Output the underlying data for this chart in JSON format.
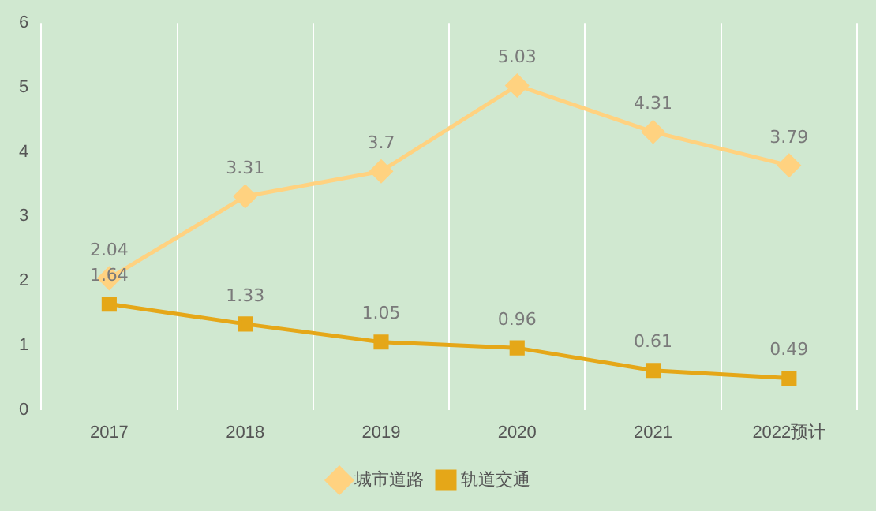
{
  "chart_data": {
    "type": "line",
    "categories": [
      "2017",
      "2018",
      "2019",
      "2020",
      "2021",
      "2022预计"
    ],
    "series": [
      {
        "name": "城市道路",
        "color": "#ffd280",
        "values": [
          2.04,
          3.31,
          3.7,
          5.03,
          4.31,
          3.79
        ],
        "marker": "diamond"
      },
      {
        "name": "轨道交通",
        "color": "#e5a718",
        "values": [
          1.64,
          1.33,
          1.05,
          0.96,
          0.61,
          0.49
        ],
        "marker": "square"
      }
    ],
    "ylim": [
      0,
      6
    ],
    "yticks": [
      0,
      1,
      2,
      3,
      4,
      5,
      6
    ],
    "grid": "x",
    "legend": "bottom",
    "data_labels": true,
    "line_style": "solid"
  }
}
